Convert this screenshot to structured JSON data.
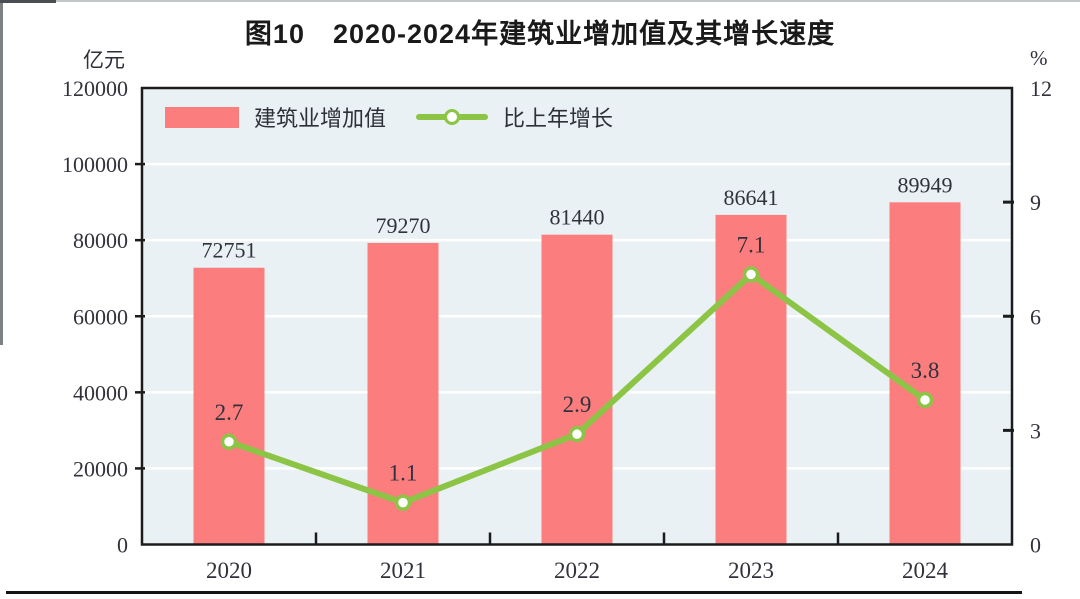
{
  "figure": {
    "title": "图10　2020-2024年建筑业增加值及其增长速度"
  },
  "chart_data": {
    "type": "bar",
    "subtype": "bar-line-combo",
    "title": "图10 2020-2024年建筑业增加值及其增长速度",
    "categories": [
      "2020",
      "2021",
      "2022",
      "2023",
      "2024"
    ],
    "series": [
      {
        "name": "建筑业增加值",
        "type": "bar",
        "axis": "left",
        "values": [
          72751,
          79270,
          81440,
          86641,
          89949
        ],
        "labels": [
          "72751",
          "79270",
          "81440",
          "86641",
          "89949"
        ],
        "color": "#fb7d7d"
      },
      {
        "name": "比上年增长",
        "type": "line",
        "axis": "right",
        "values": [
          2.7,
          1.1,
          2.9,
          7.1,
          3.8
        ],
        "labels": [
          "2.7",
          "1.1",
          "2.9",
          "7.1",
          "3.8"
        ],
        "color": "#8cc445",
        "marker": "circle-white"
      }
    ],
    "left_axis": {
      "unit": "亿元",
      "min": 0,
      "max": 120000,
      "ticks": [
        0,
        20000,
        40000,
        60000,
        80000,
        100000,
        120000
      ],
      "tick_labels": [
        "0",
        "20000",
        "40000",
        "60000",
        "80000",
        "100000",
        "120000"
      ]
    },
    "right_axis": {
      "unit": "%",
      "min": 0,
      "max": 12,
      "ticks": [
        0,
        3,
        6,
        9,
        12
      ],
      "tick_labels": [
        "0",
        "3",
        "6",
        "9",
        "12"
      ]
    },
    "grid": true,
    "legend_position": "top-left-inside",
    "colors": {
      "plot_background": "#e9f1f4",
      "gridline": "#ffffff",
      "plot_border": "#1c1c1c",
      "text": "#32323c",
      "bar": "#fb7d7d",
      "line": "#8cc445"
    }
  }
}
